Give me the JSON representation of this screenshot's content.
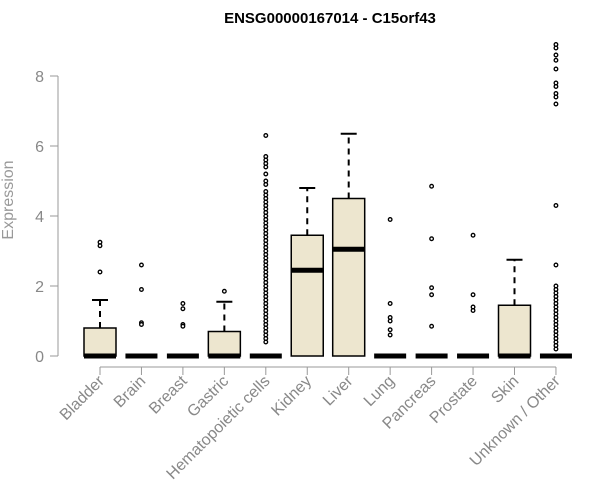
{
  "chart_data": {
    "type": "box",
    "title": "ENSG00000167014 - C15orf43",
    "xlabel": "",
    "ylabel": "Expression",
    "ylim": [
      0,
      8
    ],
    "yticks": [
      0,
      2,
      4,
      6,
      8
    ],
    "grid": false,
    "legend": "none",
    "colors": {
      "box_fill": "#ede6cf",
      "box_stroke": "#000000",
      "axis": "#999999"
    },
    "categories": [
      "Bladder",
      "Brain",
      "Breast",
      "Gastric",
      "Hematopoietic cells",
      "Kidney",
      "Liver",
      "Lung",
      "Pancreas",
      "Prostate",
      "Skin",
      "Unknown / Other"
    ],
    "boxes": [
      {
        "category": "Bladder",
        "q1": 0,
        "median": 0,
        "q3": 0.8,
        "whisker_low": 0,
        "whisker_high": 1.6,
        "outliers": [
          3.25,
          3.15,
          2.4
        ]
      },
      {
        "category": "Brain",
        "q1": 0,
        "median": 0,
        "q3": 0,
        "whisker_low": 0,
        "whisker_high": 0,
        "outliers": [
          2.6,
          1.9,
          0.95,
          0.9
        ]
      },
      {
        "category": "Breast",
        "q1": 0,
        "median": 0,
        "q3": 0,
        "whisker_low": 0,
        "whisker_high": 0,
        "outliers": [
          1.5,
          1.35,
          0.9,
          0.85
        ]
      },
      {
        "category": "Gastric",
        "q1": 0,
        "median": 0,
        "q3": 0.7,
        "whisker_low": 0,
        "whisker_high": 1.55,
        "outliers": [
          1.85
        ]
      },
      {
        "category": "Hematopoietic cells",
        "q1": 0,
        "median": 0,
        "q3": 0,
        "whisker_low": 0,
        "whisker_high": 0,
        "outliers": [
          6.3,
          5.7,
          5.6,
          5.5,
          5.4,
          5.2,
          5.0,
          4.9,
          4.7,
          4.6,
          4.5,
          4.4,
          4.3,
          4.2,
          4.1,
          4.0,
          3.9,
          3.8,
          3.7,
          3.6,
          3.5,
          3.4,
          3.3,
          3.2,
          3.1,
          3.0,
          2.9,
          2.8,
          2.7,
          2.6,
          2.5,
          2.4,
          2.3,
          2.2,
          2.1,
          2.0,
          1.9,
          1.8,
          1.7,
          1.6,
          1.5,
          1.4,
          1.3,
          1.2,
          1.1,
          1.0,
          0.9,
          0.8,
          0.7,
          0.6,
          0.5,
          0.4
        ]
      },
      {
        "category": "Kidney",
        "q1": 0,
        "median": 2.45,
        "q3": 3.45,
        "whisker_low": 0,
        "whisker_high": 4.8,
        "outliers": []
      },
      {
        "category": "Liver",
        "q1": 0,
        "median": 3.05,
        "q3": 4.5,
        "whisker_low": 0,
        "whisker_high": 6.35,
        "outliers": []
      },
      {
        "category": "Lung",
        "q1": 0,
        "median": 0,
        "q3": 0,
        "whisker_low": 0,
        "whisker_high": 0,
        "outliers": [
          3.9,
          1.5,
          1.1,
          1.0,
          0.75,
          0.6
        ]
      },
      {
        "category": "Pancreas",
        "q1": 0,
        "median": 0,
        "q3": 0,
        "whisker_low": 0,
        "whisker_high": 0,
        "outliers": [
          4.85,
          3.35,
          1.95,
          1.75,
          0.85
        ]
      },
      {
        "category": "Prostate",
        "q1": 0,
        "median": 0,
        "q3": 0,
        "whisker_low": 0,
        "whisker_high": 0,
        "outliers": [
          3.45,
          1.75,
          1.4,
          1.3
        ]
      },
      {
        "category": "Skin",
        "q1": 0,
        "median": 0,
        "q3": 1.45,
        "whisker_low": 0,
        "whisker_high": 2.75,
        "outliers": []
      },
      {
        "category": "Unknown / Other",
        "q1": 0,
        "median": 0,
        "q3": 0,
        "whisker_low": 0,
        "whisker_high": 0,
        "outliers": [
          8.9,
          8.8,
          8.6,
          8.45,
          8.2,
          7.8,
          7.7,
          7.5,
          7.4,
          7.2,
          4.3,
          2.6,
          2.0,
          1.9,
          1.8,
          1.7,
          1.6,
          1.5,
          1.4,
          1.3,
          1.2,
          1.1,
          1.0,
          0.9,
          0.8,
          0.7,
          0.6,
          0.5,
          0.4,
          0.3,
          0.2
        ]
      }
    ]
  }
}
